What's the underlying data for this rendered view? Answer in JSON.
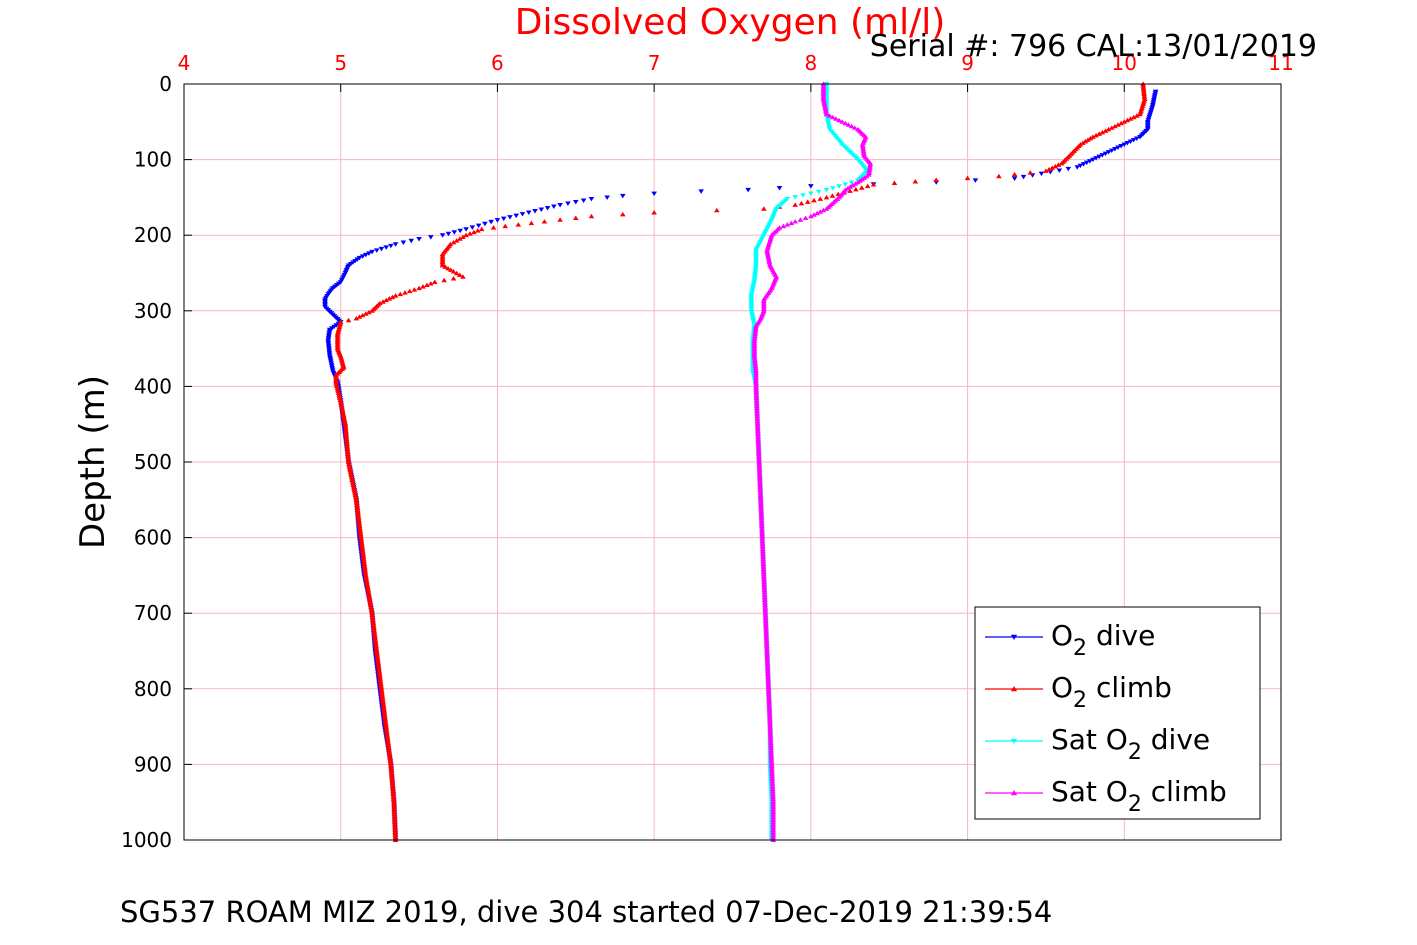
{
  "chart_data": {
    "type": "scatter",
    "title": "Dissolved Oxygen (ml/l)",
    "subtitle": "Serial #: 796  CAL:13/01/2019",
    "xlabel": "Dissolved Oxygen (ml/l)",
    "ylabel": "Depth (m)",
    "xlim": [
      4,
      11
    ],
    "ylim": [
      0,
      1000
    ],
    "y_reversed": true,
    "x_axis_position": "top",
    "xticks": [
      "4",
      "5",
      "6",
      "7",
      "8",
      "9",
      "10",
      "11"
    ],
    "yticks": [
      "0",
      "100",
      "200",
      "300",
      "400",
      "500",
      "600",
      "700",
      "800",
      "900",
      "1000"
    ],
    "grid": true,
    "legend_position": "bottom-right",
    "colors": {
      "title": "#ff0000",
      "x_ticks": "#ff0000",
      "grid": "#f2b8c8"
    },
    "series": [
      {
        "key": "o2_dive",
        "color": "#0000ff",
        "marker": "triangle-down",
        "points": [
          [
            10.2,
            10
          ],
          [
            10.18,
            30
          ],
          [
            10.15,
            50
          ],
          [
            10.15,
            60
          ],
          [
            10.1,
            70
          ],
          [
            10.0,
            80
          ],
          [
            9.9,
            90
          ],
          [
            9.8,
            100
          ],
          [
            9.7,
            110
          ],
          [
            9.3,
            125
          ],
          [
            8.8,
            130
          ],
          [
            8.0,
            135
          ],
          [
            7.6,
            140
          ],
          [
            7.3,
            142
          ],
          [
            7.0,
            145
          ],
          [
            6.8,
            148
          ],
          [
            6.6,
            152
          ],
          [
            6.4,
            160
          ],
          [
            6.2,
            170
          ],
          [
            6.0,
            180
          ],
          [
            5.8,
            192
          ],
          [
            5.65,
            200
          ],
          [
            5.5,
            205
          ],
          [
            5.35,
            212
          ],
          [
            5.2,
            222
          ],
          [
            5.12,
            230
          ],
          [
            5.05,
            240
          ],
          [
            5.03,
            250
          ],
          [
            5.0,
            262
          ],
          [
            4.95,
            270
          ],
          [
            4.92,
            278
          ],
          [
            4.9,
            285
          ],
          [
            4.9,
            295
          ],
          [
            4.95,
            305
          ],
          [
            5.0,
            315
          ],
          [
            4.93,
            325
          ],
          [
            4.92,
            340
          ],
          [
            4.93,
            360
          ],
          [
            4.95,
            380
          ],
          [
            4.98,
            395
          ],
          [
            5.0,
            420
          ],
          [
            5.02,
            450
          ],
          [
            5.05,
            500
          ],
          [
            5.1,
            550
          ],
          [
            5.12,
            600
          ],
          [
            5.15,
            650
          ],
          [
            5.2,
            700
          ],
          [
            5.22,
            750
          ],
          [
            5.25,
            800
          ],
          [
            5.28,
            850
          ],
          [
            5.32,
            900
          ],
          [
            5.34,
            950
          ],
          [
            5.35,
            1000
          ]
        ]
      },
      {
        "key": "o2_climb",
        "color": "#ff0000",
        "marker": "triangle-up",
        "points": [
          [
            10.12,
            0
          ],
          [
            10.13,
            20
          ],
          [
            10.1,
            40
          ],
          [
            10.0,
            50
          ],
          [
            9.9,
            60
          ],
          [
            9.8,
            70
          ],
          [
            9.72,
            80
          ],
          [
            9.65,
            95
          ],
          [
            9.6,
            105
          ],
          [
            9.5,
            115
          ],
          [
            9.2,
            122
          ],
          [
            8.8,
            127
          ],
          [
            8.4,
            133
          ],
          [
            8.1,
            150
          ],
          [
            7.9,
            160
          ],
          [
            7.7,
            165
          ],
          [
            7.4,
            167
          ],
          [
            7.0,
            170
          ],
          [
            6.6,
            175
          ],
          [
            6.3,
            182
          ],
          [
            6.05,
            188
          ],
          [
            5.9,
            192
          ],
          [
            5.8,
            200
          ],
          [
            5.7,
            212
          ],
          [
            5.65,
            225
          ],
          [
            5.65,
            240
          ],
          [
            5.72,
            248
          ],
          [
            5.78,
            255
          ],
          [
            5.6,
            262
          ],
          [
            5.5,
            270
          ],
          [
            5.35,
            280
          ],
          [
            5.25,
            290
          ],
          [
            5.2,
            300
          ],
          [
            5.1,
            310
          ],
          [
            5.0,
            315
          ],
          [
            4.98,
            330
          ],
          [
            4.98,
            350
          ],
          [
            5.0,
            360
          ],
          [
            5.02,
            375
          ],
          [
            4.97,
            385
          ],
          [
            4.97,
            395
          ],
          [
            5.0,
            420
          ],
          [
            5.03,
            450
          ],
          [
            5.05,
            500
          ],
          [
            5.1,
            550
          ],
          [
            5.13,
            600
          ],
          [
            5.16,
            650
          ],
          [
            5.2,
            700
          ],
          [
            5.23,
            750
          ],
          [
            5.26,
            800
          ],
          [
            5.29,
            850
          ],
          [
            5.32,
            900
          ],
          [
            5.34,
            950
          ],
          [
            5.35,
            1000
          ]
        ]
      },
      {
        "key": "sat_dive",
        "color": "#00ffff",
        "marker": "triangle-down",
        "points": [
          [
            8.1,
            0
          ],
          [
            8.1,
            25
          ],
          [
            8.1,
            40
          ],
          [
            8.12,
            60
          ],
          [
            8.2,
            80
          ],
          [
            8.3,
            100
          ],
          [
            8.36,
            115
          ],
          [
            8.3,
            128
          ],
          [
            8.1,
            140
          ],
          [
            7.85,
            152
          ],
          [
            7.78,
            165
          ],
          [
            7.75,
            180
          ],
          [
            7.7,
            200
          ],
          [
            7.65,
            220
          ],
          [
            7.65,
            240
          ],
          [
            7.64,
            260
          ],
          [
            7.62,
            280
          ],
          [
            7.62,
            300
          ],
          [
            7.64,
            320
          ],
          [
            7.63,
            340
          ],
          [
            7.63,
            360
          ],
          [
            7.63,
            380
          ],
          [
            7.65,
            400
          ],
          [
            7.66,
            450
          ],
          [
            7.67,
            500
          ],
          [
            7.68,
            550
          ],
          [
            7.69,
            600
          ],
          [
            7.7,
            650
          ],
          [
            7.71,
            700
          ],
          [
            7.72,
            750
          ],
          [
            7.73,
            800
          ],
          [
            7.74,
            850
          ],
          [
            7.74,
            900
          ],
          [
            7.75,
            950
          ],
          [
            7.75,
            1000
          ]
        ]
      },
      {
        "key": "sat_climb",
        "color": "#ff00ff",
        "marker": "triangle-up",
        "points": [
          [
            8.08,
            0
          ],
          [
            8.08,
            20
          ],
          [
            8.1,
            40
          ],
          [
            8.2,
            50
          ],
          [
            8.3,
            60
          ],
          [
            8.35,
            70
          ],
          [
            8.33,
            80
          ],
          [
            8.34,
            95
          ],
          [
            8.38,
            105
          ],
          [
            8.37,
            120
          ],
          [
            8.3,
            130
          ],
          [
            8.22,
            140
          ],
          [
            8.18,
            150
          ],
          [
            8.1,
            165
          ],
          [
            8.0,
            175
          ],
          [
            7.9,
            182
          ],
          [
            7.8,
            190
          ],
          [
            7.75,
            200
          ],
          [
            7.72,
            220
          ],
          [
            7.74,
            240
          ],
          [
            7.78,
            255
          ],
          [
            7.75,
            270
          ],
          [
            7.7,
            285
          ],
          [
            7.7,
            300
          ],
          [
            7.68,
            310
          ],
          [
            7.65,
            320
          ],
          [
            7.64,
            340
          ],
          [
            7.64,
            360
          ],
          [
            7.65,
            380
          ],
          [
            7.65,
            400
          ],
          [
            7.66,
            450
          ],
          [
            7.67,
            500
          ],
          [
            7.68,
            550
          ],
          [
            7.69,
            600
          ],
          [
            7.7,
            650
          ],
          [
            7.71,
            700
          ],
          [
            7.72,
            750
          ],
          [
            7.73,
            800
          ],
          [
            7.74,
            850
          ],
          [
            7.75,
            900
          ],
          [
            7.76,
            950
          ],
          [
            7.76,
            1000
          ]
        ]
      }
    ],
    "legend": [
      {
        "key": "o2_dive",
        "pre": "O",
        "sub": "2",
        "post": " dive"
      },
      {
        "key": "o2_climb",
        "pre": "O",
        "sub": "2",
        "post": " climb"
      },
      {
        "key": "sat_dive",
        "pre": "Sat O",
        "sub": "2",
        "post": " dive"
      },
      {
        "key": "sat_climb",
        "pre": "Sat O",
        "sub": "2",
        "post": " climb"
      }
    ]
  },
  "footer": "SG537 ROAM MIZ 2019, dive 304 started 07-Dec-2019 21:39:54"
}
